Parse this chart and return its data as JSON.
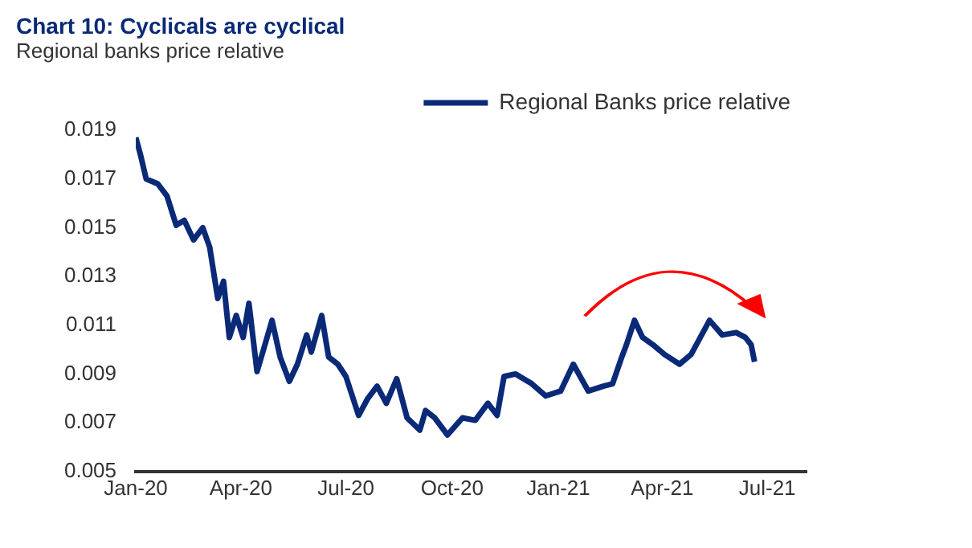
{
  "chart_data": {
    "type": "line",
    "title": "Chart 10: Cyclicals are cyclical",
    "subtitle": "Regional banks price relative",
    "xlim": [
      "2020-01-01",
      "2021-08-04"
    ],
    "xticks": [
      {
        "value": "2020-01-01",
        "label": "Jan-20"
      },
      {
        "value": "2020-04-01",
        "label": "Apr-20"
      },
      {
        "value": "2020-07-01",
        "label": "Jul-20"
      },
      {
        "value": "2020-10-01",
        "label": "Oct-20"
      },
      {
        "value": "2021-01-01",
        "label": "Jan-21"
      },
      {
        "value": "2021-04-01",
        "label": "Apr-21"
      },
      {
        "value": "2021-07-01",
        "label": "Jul-21"
      }
    ],
    "ylim": [
      0.005,
      0.019
    ],
    "yticks": [
      0.005,
      0.007,
      0.009,
      0.011,
      0.013,
      0.015,
      0.017,
      0.019
    ],
    "grid": false,
    "legend": "top right",
    "marker": "none",
    "line_style": "solid",
    "series": [
      {
        "name": "Regional Banks price relative",
        "color": "#0a2a78",
        "x": [
          "2020-01-01",
          "2020-01-05",
          "2020-01-10",
          "2020-01-20",
          "2020-01-28",
          "2020-02-05",
          "2020-02-12",
          "2020-02-20",
          "2020-02-28",
          "2020-03-05",
          "2020-03-12",
          "2020-03-17",
          "2020-03-22",
          "2020-03-28",
          "2020-04-03",
          "2020-04-08",
          "2020-04-15",
          "2020-04-20",
          "2020-04-28",
          "2020-05-05",
          "2020-05-13",
          "2020-05-20",
          "2020-05-28",
          "2020-06-01",
          "2020-06-10",
          "2020-06-16",
          "2020-06-24",
          "2020-07-01",
          "2020-07-12",
          "2020-07-20",
          "2020-07-28",
          "2020-08-05",
          "2020-08-14",
          "2020-08-23",
          "2020-09-03",
          "2020-09-08",
          "2020-09-16",
          "2020-09-27",
          "2020-10-10",
          "2020-10-21",
          "2020-11-01",
          "2020-11-09",
          "2020-11-15",
          "2020-11-25",
          "2020-12-09",
          "2020-12-21",
          "2021-01-03",
          "2021-01-14",
          "2021-01-27",
          "2021-02-09",
          "2021-02-17",
          "2021-02-25",
          "2021-03-01",
          "2021-03-08",
          "2021-03-15",
          "2021-03-24",
          "2021-04-03",
          "2021-04-16",
          "2021-04-26",
          "2021-05-04",
          "2021-05-12",
          "2021-05-23",
          "2021-06-04",
          "2021-06-12",
          "2021-06-17",
          "2021-06-20"
        ],
        "values": [
          0.0187,
          0.018,
          0.017,
          0.0168,
          0.0163,
          0.0151,
          0.0153,
          0.0145,
          0.015,
          0.0142,
          0.0121,
          0.0128,
          0.0105,
          0.0114,
          0.0105,
          0.0119,
          0.0091,
          0.0099,
          0.0112,
          0.0097,
          0.0087,
          0.0094,
          0.0106,
          0.0099,
          0.0114,
          0.0097,
          0.0094,
          0.0089,
          0.0073,
          0.008,
          0.0085,
          0.0078,
          0.0088,
          0.0072,
          0.0067,
          0.0075,
          0.0072,
          0.0065,
          0.0072,
          0.0071,
          0.0078,
          0.0073,
          0.0089,
          0.009,
          0.0086,
          0.0081,
          0.0083,
          0.0094,
          0.0083,
          0.0085,
          0.0086,
          0.0097,
          0.0102,
          0.0112,
          0.0105,
          0.0102,
          0.0098,
          0.0094,
          0.0098,
          0.0105,
          0.0112,
          0.0106,
          0.0107,
          0.0105,
          0.0102,
          0.0095
        ]
      }
    ]
  }
}
